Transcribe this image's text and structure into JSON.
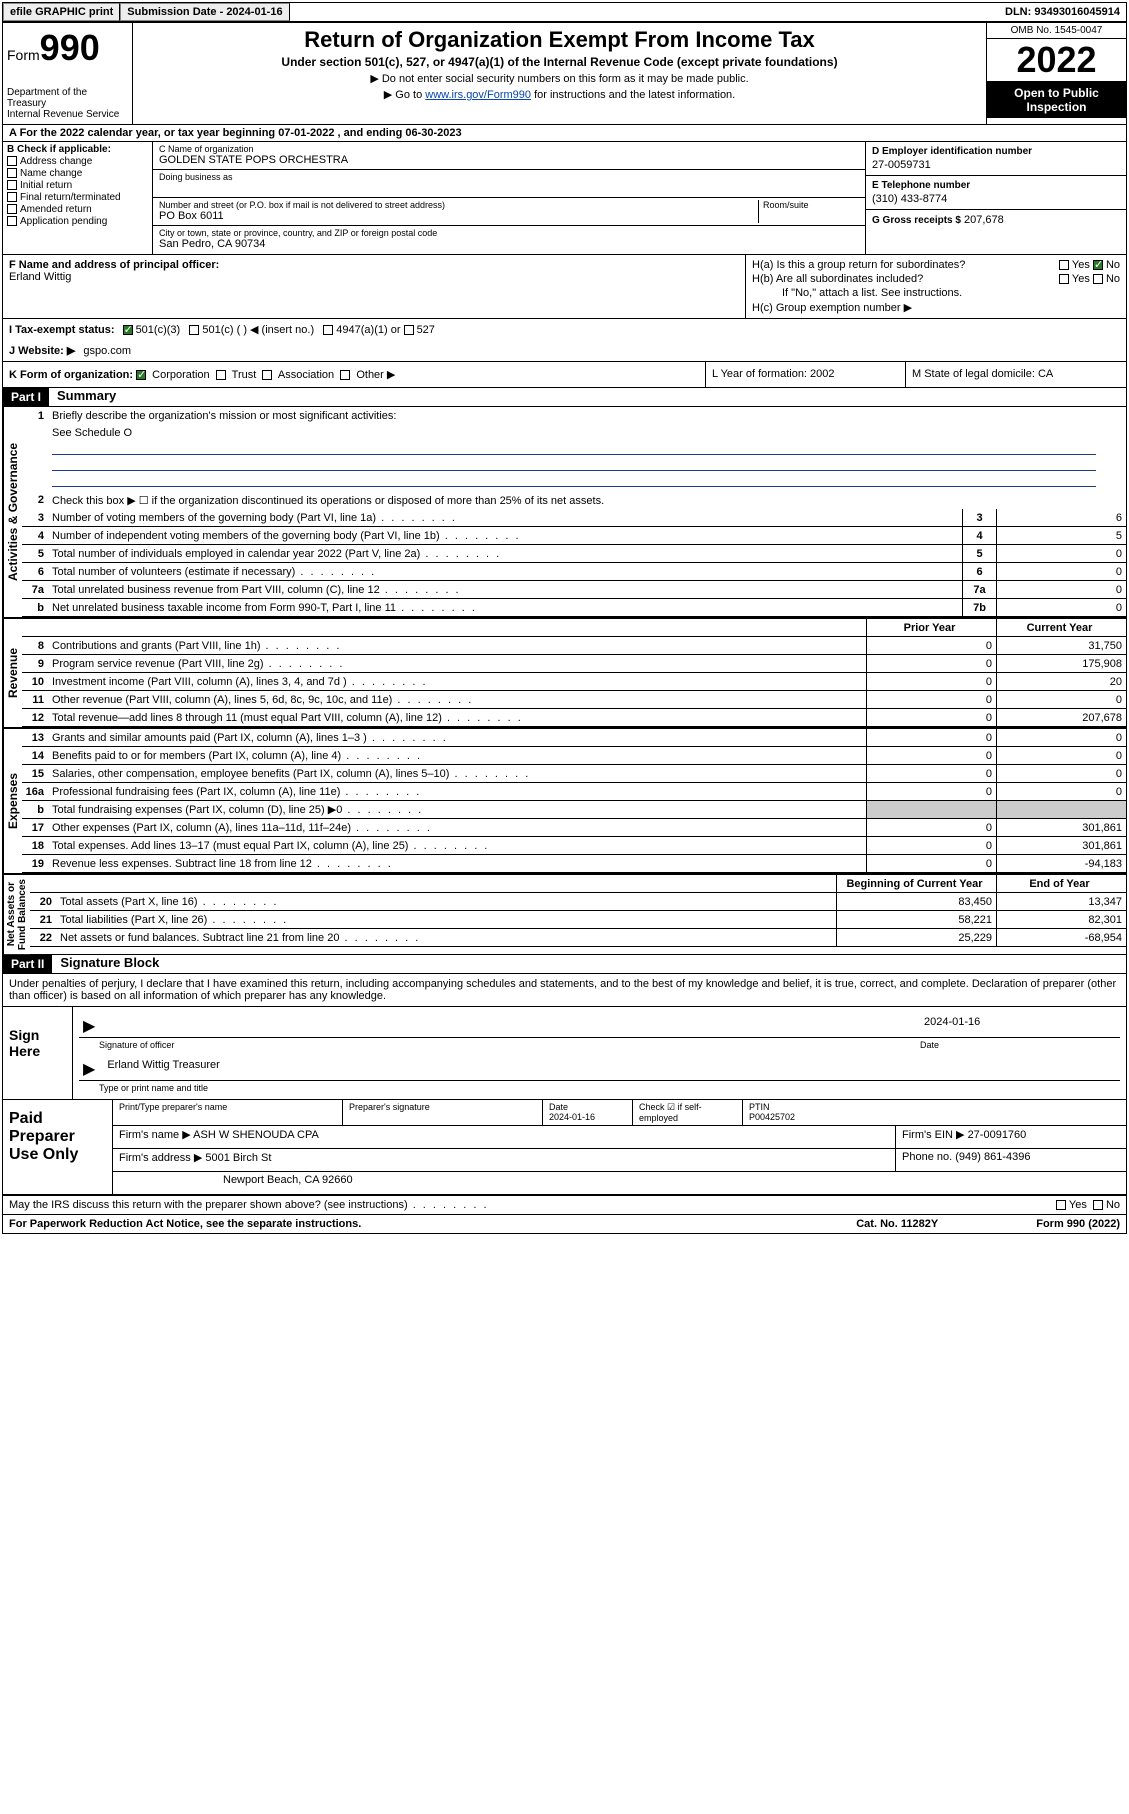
{
  "top": {
    "efile": "efile GRAPHIC print",
    "sub_label": "Submission Date - 2024-01-16",
    "dln": "DLN: 93493016045914"
  },
  "header": {
    "form_label": "Form",
    "form_num": "990",
    "dept1": "Department of the Treasury",
    "dept2": "Internal Revenue Service",
    "title": "Return of Organization Exempt From Income Tax",
    "subtitle": "Under section 501(c), 527, or 4947(a)(1) of the Internal Revenue Code (except private foundations)",
    "instr1": "▶ Do not enter social security numbers on this form as it may be made public.",
    "instr2_pre": "▶ Go to ",
    "instr2_link": "www.irs.gov/Form990",
    "instr2_post": " for instructions and the latest information.",
    "omb": "OMB No. 1545-0047",
    "year": "2022",
    "open_pub": "Open to Public Inspection"
  },
  "lineA": "A For the 2022 calendar year, or tax year beginning 07-01-2022     , and ending 06-30-2023",
  "colB": {
    "label": "B Check if applicable:",
    "opts": [
      "Address change",
      "Name change",
      "Initial return",
      "Final return/terminated",
      "Amended return",
      "Application pending"
    ]
  },
  "colC": {
    "name_lbl": "C Name of organization",
    "name": "GOLDEN STATE POPS ORCHESTRA",
    "dba_lbl": "Doing business as",
    "dba": "",
    "addr_lbl": "Number and street (or P.O. box if mail is not delivered to street address)",
    "room_lbl": "Room/suite",
    "addr": "PO Box 6011",
    "city_lbl": "City or town, state or province, country, and ZIP or foreign postal code",
    "city": "San Pedro, CA   90734"
  },
  "colD": {
    "lbl": "D Employer identification number",
    "val": "27-0059731"
  },
  "colE": {
    "lbl": "E Telephone number",
    "val": "(310) 433-8774"
  },
  "colG": {
    "lbl": "G Gross receipts $",
    "val": "207,678"
  },
  "colF": {
    "lbl": "F  Name and address of principal officer:",
    "val": "Erland Wittig"
  },
  "colH": {
    "ha": "H(a)  Is this a group return for subordinates?",
    "hb": "H(b)  Are all subordinates included?",
    "hb_note": "If \"No,\" attach a list. See instructions.",
    "hc": "H(c)  Group exemption number ▶"
  },
  "lineI": {
    "lbl": "I     Tax-exempt status:",
    "o1": "501(c)(3)",
    "o2": "501(c) (   ) ◀ (insert no.)",
    "o3": "4947(a)(1) or",
    "o4": "527"
  },
  "lineJ": {
    "lbl": "J    Website: ▶",
    "val": "gspo.com"
  },
  "lineK": {
    "lbl": "K Form of organization:",
    "o1": "Corporation",
    "o2": "Trust",
    "o3": "Association",
    "o4": "Other ▶",
    "L": "L Year of formation: 2002",
    "M": "M State of legal domicile: CA"
  },
  "part1": {
    "hdr": "Part I",
    "title": "Summary",
    "q1": "Briefly describe the organization's mission or most significant activities:",
    "q1_val": "See Schedule O",
    "q2": "Check this box ▶ ☐  if the organization discontinued its operations or disposed of more than 25% of its net assets.",
    "rows_gov": [
      {
        "n": "3",
        "t": "Number of voting members of the governing body (Part VI, line 1a)",
        "box": "3",
        "v": "6"
      },
      {
        "n": "4",
        "t": "Number of independent voting members of the governing body (Part VI, line 1b)",
        "box": "4",
        "v": "5"
      },
      {
        "n": "5",
        "t": "Total number of individuals employed in calendar year 2022 (Part V, line 2a)",
        "box": "5",
        "v": "0"
      },
      {
        "n": "6",
        "t": "Total number of volunteers (estimate if necessary)",
        "box": "6",
        "v": "0"
      },
      {
        "n": "7a",
        "t": "Total unrelated business revenue from Part VIII, column (C), line 12",
        "box": "7a",
        "v": "0"
      },
      {
        "n": "b",
        "t": "Net unrelated business taxable income from Form 990-T, Part I, line 11",
        "box": "7b",
        "v": "0"
      }
    ],
    "col_hdr_prior": "Prior Year",
    "col_hdr_curr": "Current Year",
    "rows_rev": [
      {
        "n": "8",
        "t": "Contributions and grants (Part VIII, line 1h)",
        "p": "0",
        "c": "31,750"
      },
      {
        "n": "9",
        "t": "Program service revenue (Part VIII, line 2g)",
        "p": "0",
        "c": "175,908"
      },
      {
        "n": "10",
        "t": "Investment income (Part VIII, column (A), lines 3, 4, and 7d )",
        "p": "0",
        "c": "20"
      },
      {
        "n": "11",
        "t": "Other revenue (Part VIII, column (A), lines 5, 6d, 8c, 9c, 10c, and 11e)",
        "p": "0",
        "c": "0"
      },
      {
        "n": "12",
        "t": "Total revenue—add lines 8 through 11 (must equal Part VIII, column (A), line 12)",
        "p": "0",
        "c": "207,678"
      }
    ],
    "rows_exp": [
      {
        "n": "13",
        "t": "Grants and similar amounts paid (Part IX, column (A), lines 1–3 )",
        "p": "0",
        "c": "0"
      },
      {
        "n": "14",
        "t": "Benefits paid to or for members (Part IX, column (A), line 4)",
        "p": "0",
        "c": "0"
      },
      {
        "n": "15",
        "t": "Salaries, other compensation, employee benefits (Part IX, column (A), lines 5–10)",
        "p": "0",
        "c": "0"
      },
      {
        "n": "16a",
        "t": "Professional fundraising fees (Part IX, column (A), line 11e)",
        "p": "0",
        "c": "0"
      },
      {
        "n": "b",
        "t": "Total fundraising expenses (Part IX, column (D), line 25) ▶0",
        "p": "",
        "c": "",
        "gray": true
      },
      {
        "n": "17",
        "t": "Other expenses (Part IX, column (A), lines 11a–11d, 11f–24e)",
        "p": "0",
        "c": "301,861"
      },
      {
        "n": "18",
        "t": "Total expenses. Add lines 13–17 (must equal Part IX, column (A), line 25)",
        "p": "0",
        "c": "301,861"
      },
      {
        "n": "19",
        "t": "Revenue less expenses. Subtract line 18 from line 12",
        "p": "0",
        "c": "-94,183"
      }
    ],
    "col_hdr_beg": "Beginning of Current Year",
    "col_hdr_end": "End of Year",
    "rows_net": [
      {
        "n": "20",
        "t": "Total assets (Part X, line 16)",
        "p": "83,450",
        "c": "13,347"
      },
      {
        "n": "21",
        "t": "Total liabilities (Part X, line 26)",
        "p": "58,221",
        "c": "82,301"
      },
      {
        "n": "22",
        "t": "Net assets or fund balances. Subtract line 21 from line 20",
        "p": "25,229",
        "c": "-68,954"
      }
    ]
  },
  "part2": {
    "hdr": "Part II",
    "title": "Signature Block",
    "intro": "Under penalties of perjury, I declare that I have examined this return, including accompanying schedules and statements, and to the best of my knowledge and belief, it is true, correct, and complete. Declaration of preparer (other than officer) is based on all information of which preparer has any knowledge.",
    "sign_here": "Sign Here",
    "sig_date": "2024-01-16",
    "sig_lbl": "Signature of officer",
    "date_lbl": "Date",
    "name_title": "Erland Wittig  Treasurer",
    "name_lbl": "Type or print name and title",
    "prep_lbl": "Paid Preparer Use Only",
    "prep_hdr": [
      "Print/Type preparer's name",
      "Preparer's signature",
      "Date",
      "",
      "PTIN"
    ],
    "prep_r1": [
      "",
      "",
      "2024-01-16",
      "Check ☑ if self-employed",
      "P00425702"
    ],
    "firm_name_lbl": "Firm's name    ▶",
    "firm_name": "ASH W SHENOUDA CPA",
    "firm_ein_lbl": "Firm's EIN ▶",
    "firm_ein": "27-0091760",
    "firm_addr_lbl": "Firm's address ▶",
    "firm_addr1": "5001 Birch St",
    "firm_addr2": "Newport Beach, CA  92660",
    "phone_lbl": "Phone no.",
    "phone": "(949) 861-4396",
    "discuss": "May the IRS discuss this return with the preparer shown above? (see instructions)",
    "paperwork": "For Paperwork Reduction Act Notice, see the separate instructions.",
    "cat": "Cat. No. 11282Y",
    "form_foot": "Form 990 (2022)"
  }
}
